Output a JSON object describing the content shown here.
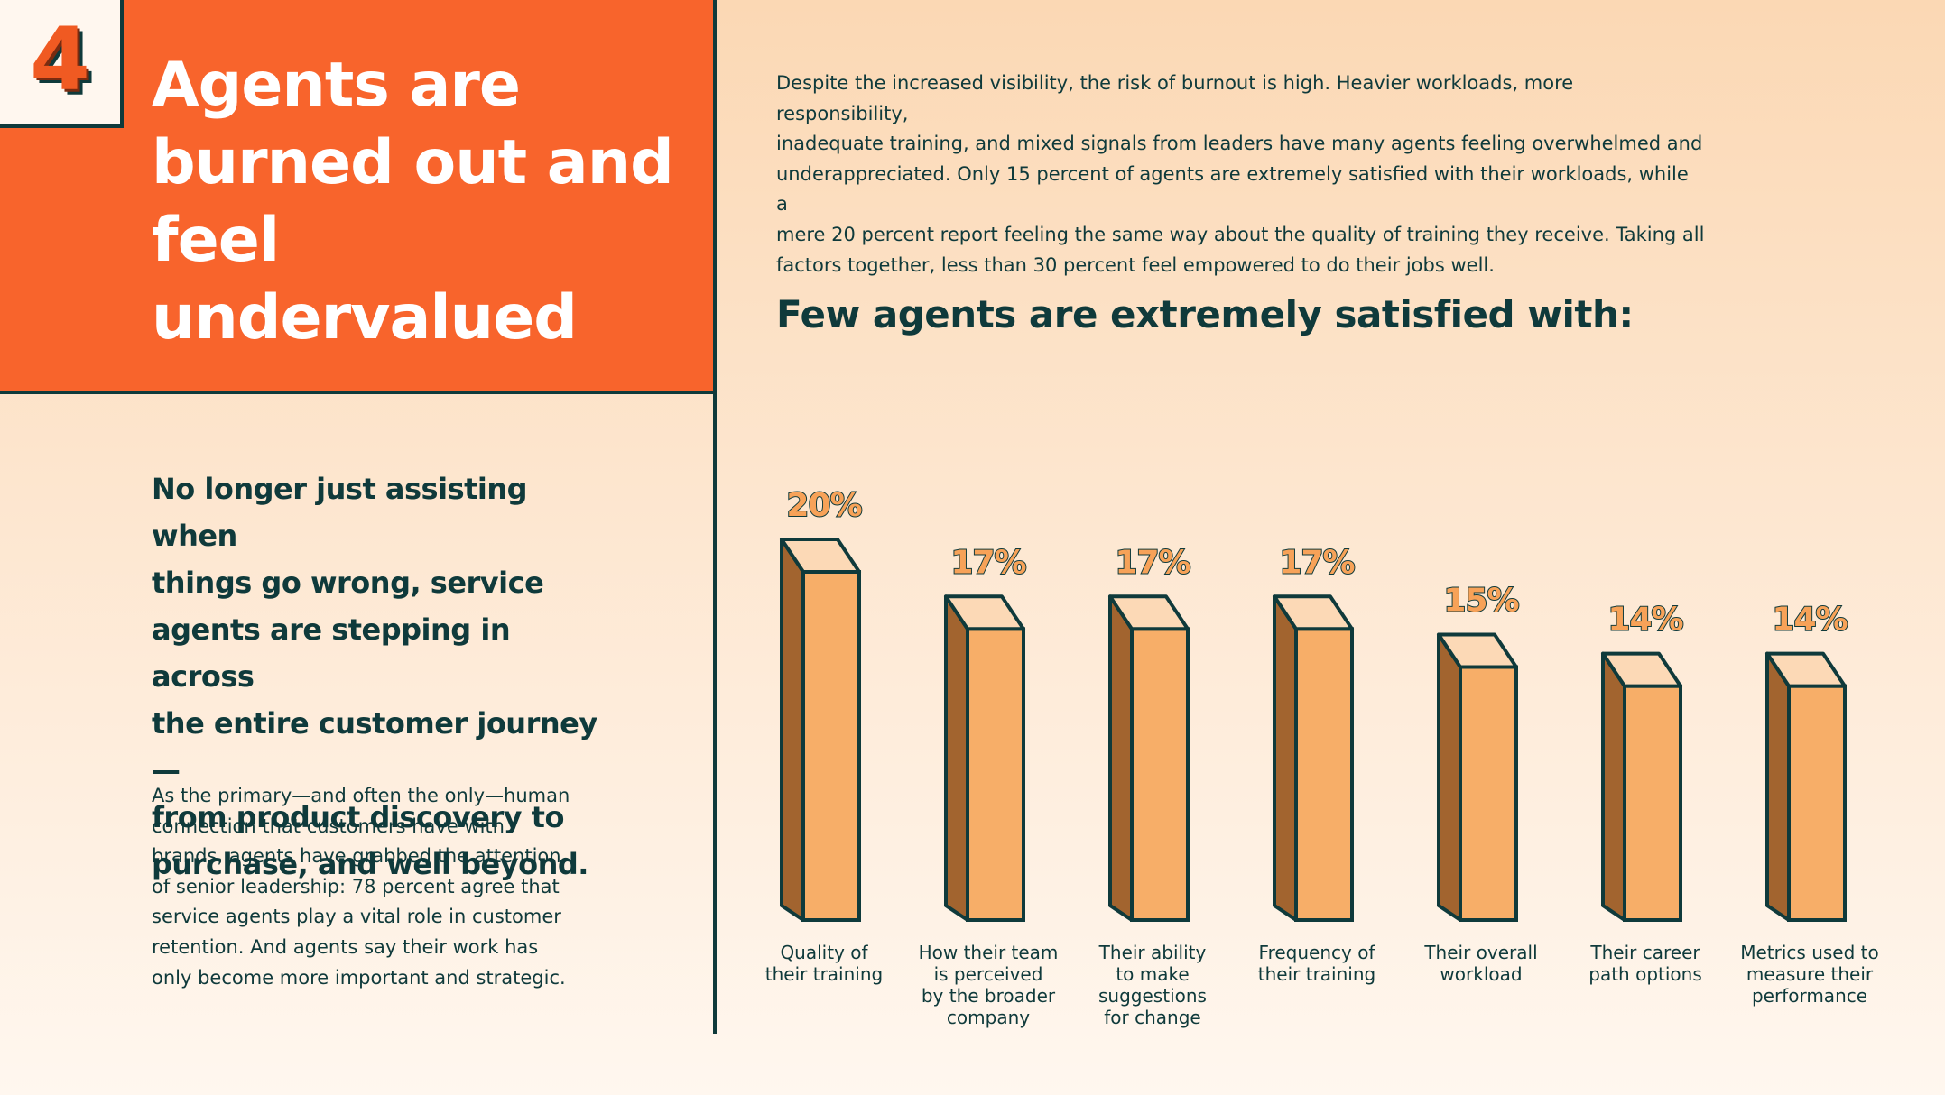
{
  "section_number": "4",
  "title_lines": [
    "Agents are",
    "burned out and",
    "feel undervalued"
  ],
  "lead_lines": [
    "No longer just assisting when",
    "things go wrong, service",
    "agents are stepping in across",
    "the entire customer journey—",
    "from product discovery to",
    "purchase, and well beyond."
  ],
  "body_lines": [
    "As the primary—and often the only—human",
    "connection that customers have with",
    "brands, agents have grabbed the attention",
    "of senior leadership: 78 percent agree that",
    "service agents play a vital role in customer",
    "retention. And agents say their work has",
    "only become more important and strategic."
  ],
  "intro_lines": [
    "Despite the increased visibility, the risk of burnout is high. Heavier workloads, more responsibility,",
    "inadequate training, and mixed signals from leaders have many agents feeling overwhelmed and",
    "underappreciated. Only 15 percent of agents are extremely satisfied with their workloads, while a",
    "mere 20 percent report feeling the same way about the quality of training they receive. Taking all",
    "factors together, less than 30 percent feel empowered to do their jobs well."
  ],
  "colors": {
    "accent_orange": "#f8642c",
    "bar_front": "#f7ae68",
    "bar_top": "#fcd9b6",
    "bar_side": "#a2642f",
    "dark_teal": "#0f3a3b"
  },
  "chart_data": {
    "type": "bar",
    "title": "Few agents are extremely satisfied with:",
    "unit": "%",
    "categories": [
      [
        "Quality of",
        "their training"
      ],
      [
        "How their team",
        "is perceived",
        "by the broader",
        "company"
      ],
      [
        "Their ability",
        "to make",
        "suggestions",
        "for change"
      ],
      [
        "Frequency of",
        "their training"
      ],
      [
        "Their overall",
        "workload"
      ],
      [
        "Their career",
        "path options"
      ],
      [
        "Metrics used to",
        "measure their",
        "performance"
      ]
    ],
    "values": [
      20,
      17,
      17,
      17,
      15,
      14,
      14
    ],
    "value_labels": [
      "20%",
      "17%",
      "17%",
      "17%",
      "15%",
      "14%",
      "14%"
    ],
    "grid": false,
    "legend": "none"
  }
}
